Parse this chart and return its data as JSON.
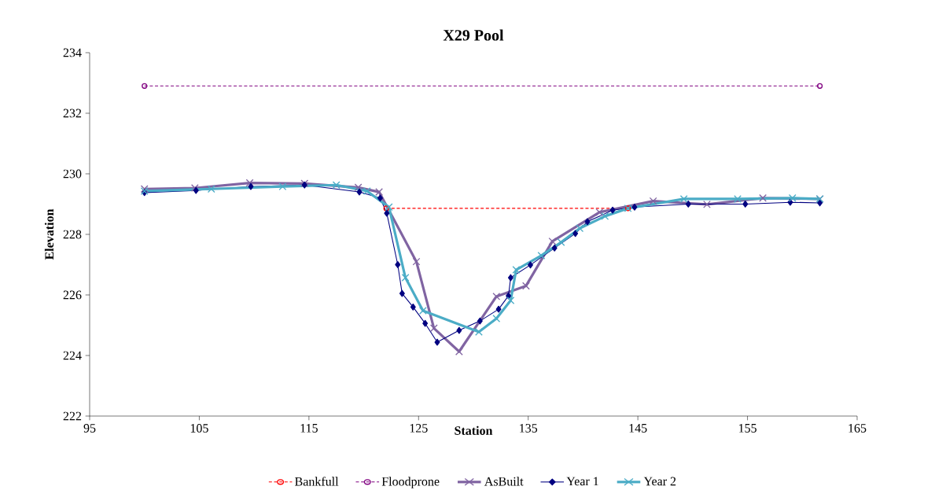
{
  "chart_data": {
    "type": "line",
    "title": "X29 Pool",
    "xlabel": "Station",
    "ylabel": "Elevation",
    "xlim": [
      95,
      165
    ],
    "ylim": [
      222,
      234
    ],
    "xticks": [
      95,
      105,
      115,
      125,
      135,
      145,
      155,
      165
    ],
    "yticks": [
      222,
      224,
      226,
      228,
      230,
      232,
      234
    ],
    "grid": false,
    "legend": "bottom",
    "series": [
      {
        "name": "Bankfull",
        "color": "#ff0000",
        "marker": "circle",
        "line_style": "dashed",
        "x": [
          122.05,
          144.1
        ],
        "values": [
          228.86,
          228.86
        ]
      },
      {
        "name": "Floodprone",
        "color": "#800080",
        "marker": "circle",
        "line_style": "dashed",
        "x": [
          100,
          161.6
        ],
        "values": [
          232.9,
          232.9
        ]
      },
      {
        "name": "AsBuilt",
        "color": "#8064a2",
        "marker": "cross",
        "line_style": "solid",
        "x": [
          100,
          104.6,
          109.6,
          114.6,
          119.5,
          121.4,
          124.8,
          126.4,
          128.7,
          132.1,
          134.8,
          137.2,
          141.5,
          146.4,
          151.3,
          156.4,
          161.6
        ],
        "values": [
          229.5,
          229.53,
          229.7,
          229.68,
          229.55,
          229.4,
          227.1,
          224.9,
          224.13,
          225.95,
          226.3,
          227.77,
          228.73,
          229.1,
          228.99,
          229.2,
          229.17
        ]
      },
      {
        "name": "Year 1",
        "color": "#000080",
        "marker": "diamond",
        "line_style": "solid",
        "x": [
          100,
          104.7,
          109.7,
          114.6,
          119.6,
          121.5,
          122.1,
          123.1,
          123.5,
          124.5,
          125.6,
          126.7,
          128.7,
          130.6,
          132.3,
          133.2,
          133.4,
          135.2,
          137.4,
          139.3,
          140.4,
          142.7,
          144.7,
          149.6,
          154.8,
          158.9,
          161.6
        ],
        "values": [
          229.38,
          229.45,
          229.58,
          229.63,
          229.4,
          229.2,
          228.7,
          227.0,
          226.05,
          225.6,
          225.06,
          224.44,
          224.83,
          225.14,
          225.53,
          225.97,
          226.57,
          226.99,
          227.55,
          228.03,
          228.42,
          228.8,
          228.9,
          229.0,
          229.0,
          229.06,
          229.04
        ]
      },
      {
        "name": "Year 2",
        "color": "#4bacc6",
        "marker": "cross",
        "line_style": "solid",
        "x": [
          100,
          106.1,
          112.6,
          117.5,
          120.3,
          122.3,
          123.8,
          125.4,
          130.5,
          132.1,
          133.4,
          133.9,
          136.2,
          138.0,
          139.7,
          142.0,
          144.1,
          149.2,
          154.1,
          159.1,
          161.6
        ],
        "values": [
          229.43,
          229.5,
          229.58,
          229.63,
          229.43,
          228.9,
          226.57,
          225.48,
          224.78,
          225.22,
          225.82,
          226.83,
          227.3,
          227.74,
          228.2,
          228.6,
          228.86,
          229.17,
          229.17,
          229.2,
          229.17
        ]
      }
    ]
  }
}
